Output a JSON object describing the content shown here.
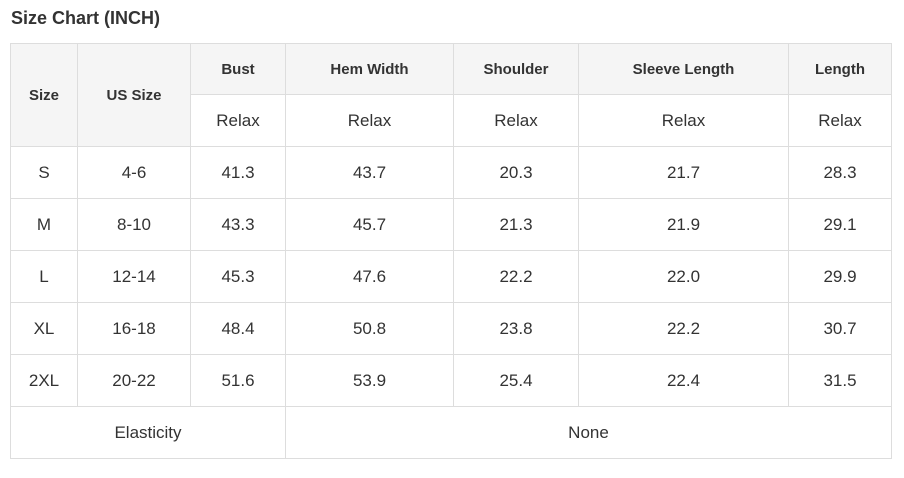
{
  "title": "Size Chart (INCH)",
  "unit": "INCH",
  "table": {
    "header": {
      "size_label": "Size",
      "us_size_label": "US Size",
      "measure_columns": [
        {
          "label": "Bust",
          "fit": "Relax"
        },
        {
          "label": "Hem Width",
          "fit": "Relax"
        },
        {
          "label": "Shoulder",
          "fit": "Relax"
        },
        {
          "label": "Sleeve Length",
          "fit": "Relax"
        },
        {
          "label": "Length",
          "fit": "Relax"
        }
      ]
    },
    "rows": [
      {
        "size": "S",
        "us_size": "4-6",
        "values": [
          "41.3",
          "43.7",
          "20.3",
          "21.7",
          "28.3"
        ]
      },
      {
        "size": "M",
        "us_size": "8-10",
        "values": [
          "43.3",
          "45.7",
          "21.3",
          "21.9",
          "29.1"
        ]
      },
      {
        "size": "L",
        "us_size": "12-14",
        "values": [
          "45.3",
          "47.6",
          "22.2",
          "22.0",
          "29.9"
        ]
      },
      {
        "size": "XL",
        "us_size": "16-18",
        "values": [
          "48.4",
          "50.8",
          "23.8",
          "22.2",
          "30.7"
        ]
      },
      {
        "size": "2XL",
        "us_size": "20-22",
        "values": [
          "51.6",
          "53.9",
          "25.4",
          "22.4",
          "31.5"
        ]
      }
    ],
    "footer": {
      "label": "Elasticity",
      "value": "None"
    }
  },
  "colors": {
    "highlight_bg": "#464646",
    "highlight_text": "#ffffff",
    "header_bg": "#f5f5f5",
    "border": "#dddddd",
    "text": "#333333"
  },
  "chart_data": {
    "type": "table",
    "title": "Size Chart (INCH)",
    "columns": [
      "Size",
      "US Size",
      "Bust",
      "Hem Width",
      "Shoulder",
      "Sleeve Length",
      "Length"
    ],
    "fit_row": [
      "",
      "",
      "Relax",
      "Relax",
      "Relax",
      "Relax",
      "Relax"
    ],
    "rows": [
      [
        "S",
        "4-6",
        41.3,
        43.7,
        20.3,
        21.7,
        28.3
      ],
      [
        "M",
        "8-10",
        43.3,
        45.7,
        21.3,
        21.9,
        29.1
      ],
      [
        "L",
        "12-14",
        45.3,
        47.6,
        22.2,
        22.0,
        29.9
      ],
      [
        "XL",
        "16-18",
        48.4,
        50.8,
        23.8,
        22.2,
        30.7
      ],
      [
        "2XL",
        "20-22",
        51.6,
        53.9,
        25.4,
        22.4,
        31.5
      ]
    ],
    "footer": [
      "Elasticity",
      "None"
    ],
    "highlighted_column": "US Size"
  }
}
